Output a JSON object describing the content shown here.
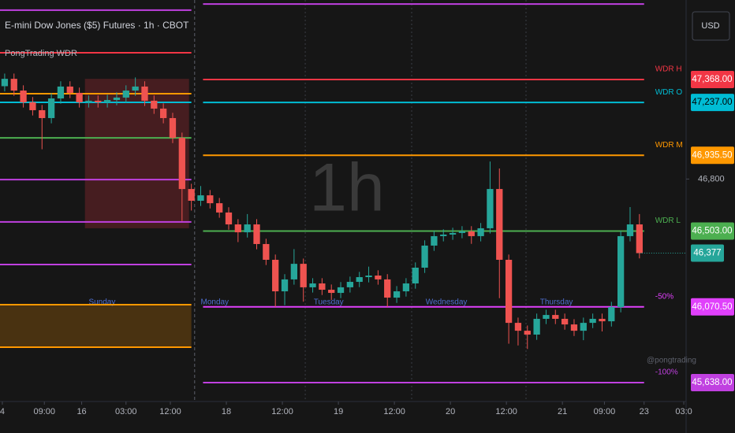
{
  "chart_data": {
    "type": "candlestick",
    "title": "E-mini Dow Jones ($5) Futures · 1h · CBOT",
    "subtitle": "PongTrading WDR",
    "watermark": "1h",
    "credit": "@pongtrading",
    "currency": "USD",
    "up_color": "#26a69a",
    "down_color": "#ef5350",
    "x": [
      1,
      3,
      5,
      7,
      9,
      11,
      13,
      15,
      17,
      19,
      21,
      23,
      25,
      27,
      29,
      31,
      33,
      35,
      37,
      39,
      41,
      43,
      45,
      47,
      49,
      51,
      53,
      55,
      57,
      59,
      61,
      63,
      65,
      67,
      69,
      71,
      73,
      75,
      77,
      79,
      81,
      83,
      85,
      87,
      89,
      91,
      93,
      95,
      97,
      99,
      101,
      103,
      105,
      107,
      109,
      111,
      113,
      115,
      117,
      119,
      121,
      123,
      125,
      127,
      129,
      131,
      133,
      135,
      137
    ],
    "open": [
      47330,
      47372,
      47305,
      47238,
      47193,
      47148,
      47260,
      47328,
      47292,
      47238,
      47247,
      47238,
      47251,
      47265,
      47305,
      47328,
      47247,
      47202,
      47148,
      47035,
      46743,
      46676,
      46707,
      46662,
      46609,
      46541,
      46496,
      46541,
      46429,
      46339,
      46159,
      46227,
      46316,
      46182,
      46204,
      46168,
      46150,
      46182,
      46213,
      46240,
      46249,
      46227,
      46123,
      46159,
      46204,
      46294,
      46420,
      46474,
      46483,
      46492,
      46501,
      46474,
      46519,
      46743,
      46339,
      45979,
      45934,
      45912,
      46002,
      46024,
      46002,
      45970,
      45934,
      45979,
      46002,
      45988,
      46069,
      46474,
      46541
    ],
    "high": [
      47402,
      47402,
      47335,
      47268,
      47223,
      47290,
      47358,
      47358,
      47322,
      47277,
      47277,
      47281,
      47295,
      47335,
      47380,
      47358,
      47277,
      47232,
      47178,
      47065,
      46773,
      46760,
      46737,
      46692,
      46639,
      46571,
      46600,
      46571,
      46459,
      46369,
      46257,
      46400,
      46346,
      46234,
      46234,
      46198,
      46212,
      46243,
      46270,
      46300,
      46279,
      46257,
      46189,
      46234,
      46324,
      46450,
      46504,
      46513,
      46522,
      46531,
      46531,
      46549,
      46900,
      46860,
      46369,
      46009,
      45964,
      46032,
      46054,
      46054,
      46032,
      46000,
      46009,
      46032,
      46032,
      46099,
      46504,
      46640,
      46600
    ],
    "low": [
      47300,
      47275,
      47208,
      47163,
      46970,
      47118,
      47230,
      47262,
      47208,
      47208,
      47208,
      47208,
      47221,
      47235,
      47275,
      47217,
      47172,
      47118,
      47005,
      46560,
      46620,
      46646,
      46632,
      46579,
      46511,
      46440,
      46466,
      46399,
      46309,
      46070,
      46080,
      46197,
      46100,
      46152,
      46138,
      46110,
      46120,
      46152,
      46183,
      46210,
      46197,
      46070,
      46093,
      46129,
      46174,
      46264,
      46390,
      46444,
      46453,
      46462,
      46430,
      46444,
      46489,
      46120,
      45860,
      45850,
      45830,
      45882,
      45972,
      45972,
      45940,
      45904,
      45880,
      45949,
      45930,
      45958,
      46039,
      46444,
      46347
    ],
    "close": [
      47372,
      47305,
      47238,
      47193,
      47148,
      47260,
      47328,
      47292,
      47238,
      47247,
      47238,
      47251,
      47265,
      47305,
      47328,
      47247,
      47202,
      47148,
      47035,
      46743,
      46676,
      46707,
      46662,
      46609,
      46541,
      46496,
      46541,
      46429,
      46339,
      46159,
      46227,
      46316,
      46182,
      46204,
      46168,
      46150,
      46182,
      46213,
      46240,
      46249,
      46227,
      46123,
      46159,
      46204,
      46294,
      46420,
      46474,
      46483,
      46492,
      46501,
      46474,
      46519,
      46743,
      46339,
      45979,
      45934,
      45912,
      46002,
      46024,
      46002,
      45970,
      45934,
      45979,
      46002,
      45988,
      46069,
      46474,
      46541,
      46377
    ],
    "xlim": [
      0,
      147
    ],
    "xticks": [
      {
        "value": 0.5,
        "label": "4"
      },
      {
        "value": 9.5,
        "label": "09:00"
      },
      {
        "value": 17.5,
        "label": "16"
      },
      {
        "value": 27,
        "label": "03:00"
      },
      {
        "value": 36.5,
        "label": "12:00"
      },
      {
        "value": 48.5,
        "label": "18"
      },
      {
        "value": 60.5,
        "label": "12:00"
      },
      {
        "value": 72.5,
        "label": "19"
      },
      {
        "value": 84.5,
        "label": "12:00"
      },
      {
        "value": 96.5,
        "label": "20"
      },
      {
        "value": 108.5,
        "label": "12:00"
      },
      {
        "value": 120.5,
        "label": "21"
      },
      {
        "value": 129.5,
        "label": "09:00"
      },
      {
        "value": 138,
        "label": "23"
      },
      {
        "value": 146.5,
        "label": "03:0"
      }
    ],
    "ylim": [
      45530,
      47822
    ],
    "yticks": [
      {
        "value": 46800,
        "label": "46,800"
      }
    ],
    "last_price": {
      "value": 46377,
      "label": "46,377",
      "color": "#26a69a"
    },
    "levels": [
      {
        "name": "WDR H",
        "value": 47368,
        "value_label": "47,368.00",
        "color": "#f23645",
        "x": [
          43.5,
          138
        ]
      },
      {
        "name": "WDR O",
        "value": 47237,
        "value_label": "47,237.00",
        "color": "#00bcd4",
        "x": [
          43.5,
          138
        ]
      },
      {
        "name": "WDR M",
        "value": 46935.5,
        "value_label": "46,935.50",
        "color": "#ff9800",
        "x": [
          43.5,
          138
        ]
      },
      {
        "name": "WDR L",
        "value": 46503,
        "value_label": "46,503.00",
        "color": "#4caf50",
        "x": [
          43.5,
          138
        ]
      },
      {
        "name": "-50%",
        "value": 46070.5,
        "value_label": "46,070.50",
        "color": "#e040fb",
        "x": [
          43.5,
          138
        ]
      },
      {
        "name": "-100%",
        "value": 45638,
        "value_label": "45,638.00",
        "color": "#c040e0",
        "x": [
          43.5,
          138
        ]
      },
      {
        "value": 47799,
        "color": "#c040e0",
        "x": [
          43.5,
          138
        ]
      },
      {
        "value": 47764,
        "color": "#c040e0",
        "x": [
          0,
          41
        ]
      },
      {
        "value": 47521,
        "color": "#f23645",
        "x": [
          0,
          41
        ]
      },
      {
        "value": 47287,
        "color": "#ff9800",
        "x": [
          0,
          41
        ]
      },
      {
        "value": 47238,
        "color": "#00bcd4",
        "x": [
          0,
          41
        ]
      },
      {
        "value": 47035,
        "color": "#4caf50",
        "x": [
          0,
          41
        ]
      },
      {
        "value": 46797,
        "color": "#c040e0",
        "x": [
          0,
          41
        ]
      },
      {
        "value": 46555,
        "color": "#c040e0",
        "x": [
          0,
          41
        ]
      },
      {
        "value": 46312,
        "color": "#c040e0",
        "x": [
          0,
          41
        ]
      },
      {
        "value": 46083,
        "color": "#ff9800",
        "x": [
          0,
          41
        ]
      },
      {
        "value": 45840,
        "color": "#ff9800",
        "x": [
          0,
          41
        ]
      }
    ],
    "zones": [
      {
        "x": [
          18.2,
          40.5
        ],
        "y": [
          46519,
          47372
        ],
        "color": "#f23645"
      },
      {
        "x": [
          0,
          41
        ],
        "y": [
          45840,
          46083
        ],
        "color": "#ff9800"
      }
    ],
    "sessions": {
      "breaks": [
        41.7,
        65.4,
        88.2,
        112.7
      ],
      "labels": [
        {
          "x": 19,
          "label": "Sunday"
        },
        {
          "x": 43,
          "label": "Monday"
        },
        {
          "x": 67.2,
          "label": "Tuesday"
        },
        {
          "x": 91.2,
          "label": "Wednesday"
        },
        {
          "x": 115.7,
          "label": "Thursday"
        }
      ]
    }
  }
}
